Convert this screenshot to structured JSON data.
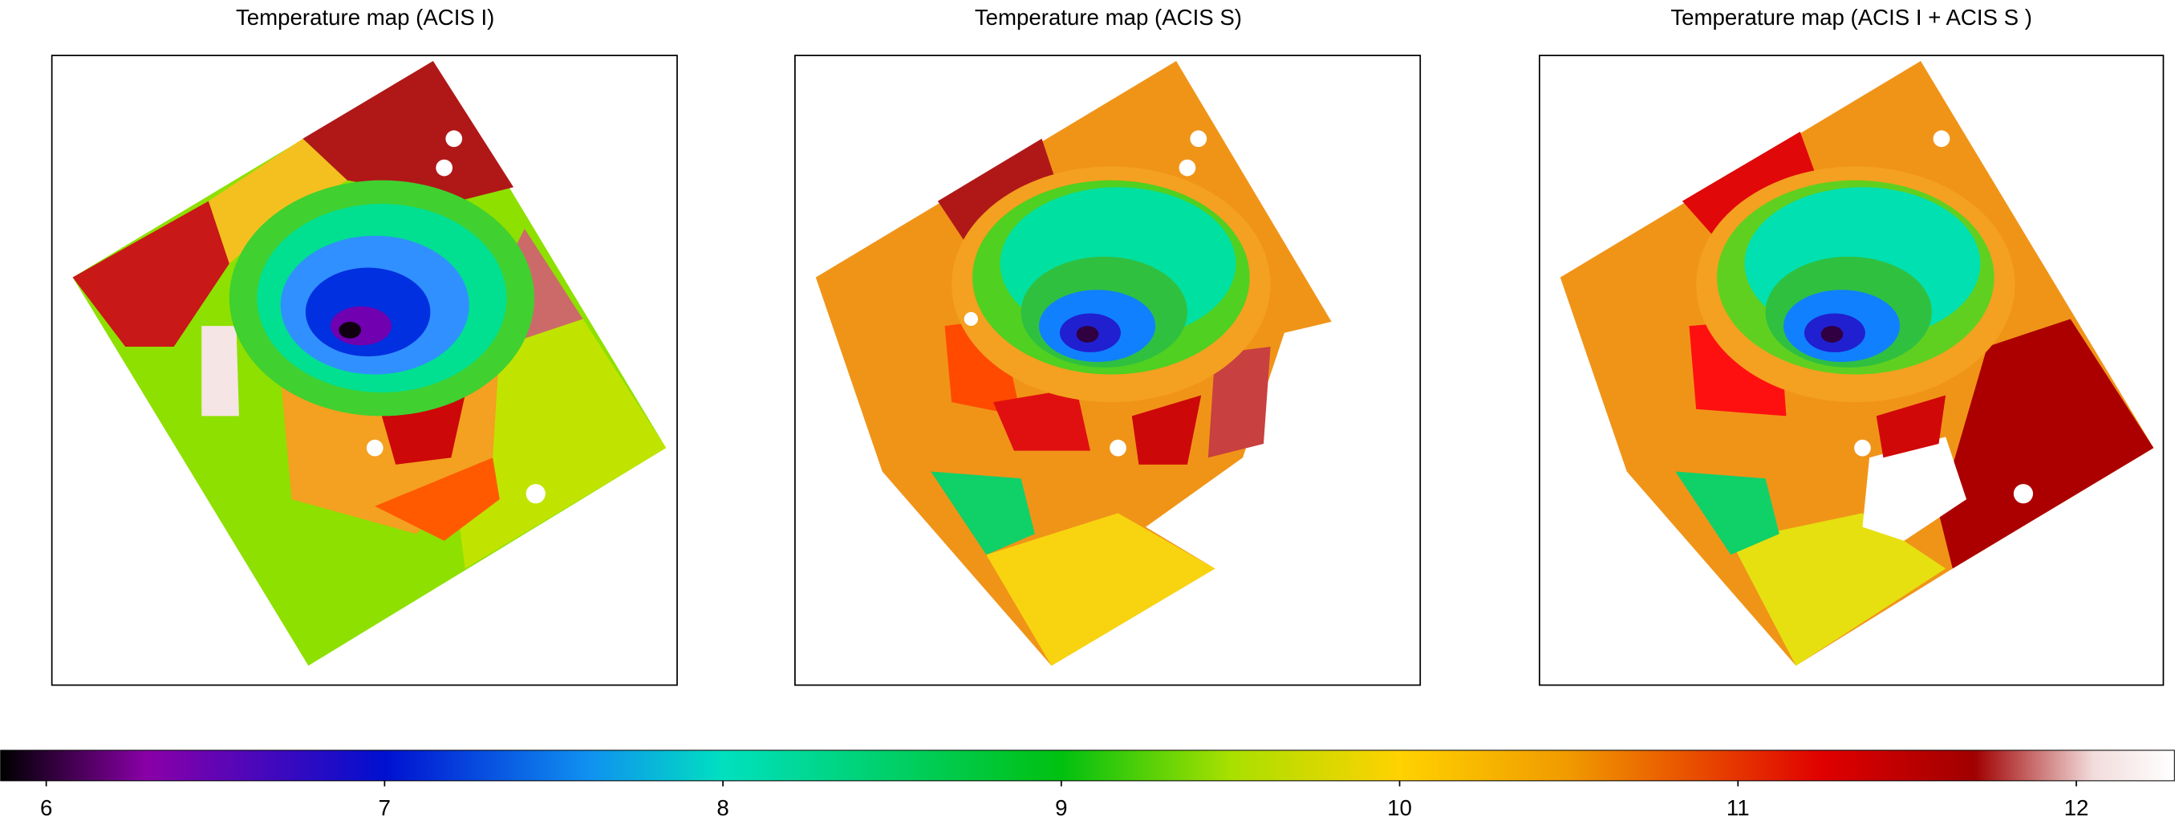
{
  "chart_data": {
    "type": "image",
    "panels": [
      {
        "title": "Temperature map (ACIS I)"
      },
      {
        "title": "Temperature map (ACIS S)"
      },
      {
        "title": "Temperature map (ACIS I + ACIS S )"
      }
    ],
    "colorbar": {
      "lim": [
        5.865,
        12.29
      ],
      "ticks": [
        6,
        7,
        8,
        9,
        10,
        11,
        12
      ],
      "stops": [
        {
          "value": 5.865,
          "color": "#000000"
        },
        {
          "value": 6.3,
          "color": "#8a00a8"
        },
        {
          "value": 7.0,
          "color": "#0010d0"
        },
        {
          "value": 7.6,
          "color": "#1090f0"
        },
        {
          "value": 8.0,
          "color": "#00e0c0"
        },
        {
          "value": 9.0,
          "color": "#00c010"
        },
        {
          "value": 9.5,
          "color": "#a8e000"
        },
        {
          "value": 10.0,
          "color": "#ffd200"
        },
        {
          "value": 10.5,
          "color": "#f09a00"
        },
        {
          "value": 11.25,
          "color": "#e00000"
        },
        {
          "value": 11.7,
          "color": "#a00000"
        },
        {
          "value": 12.05,
          "color": "#f2dcdc"
        },
        {
          "value": 12.29,
          "color": "#ffffff"
        }
      ]
    }
  }
}
